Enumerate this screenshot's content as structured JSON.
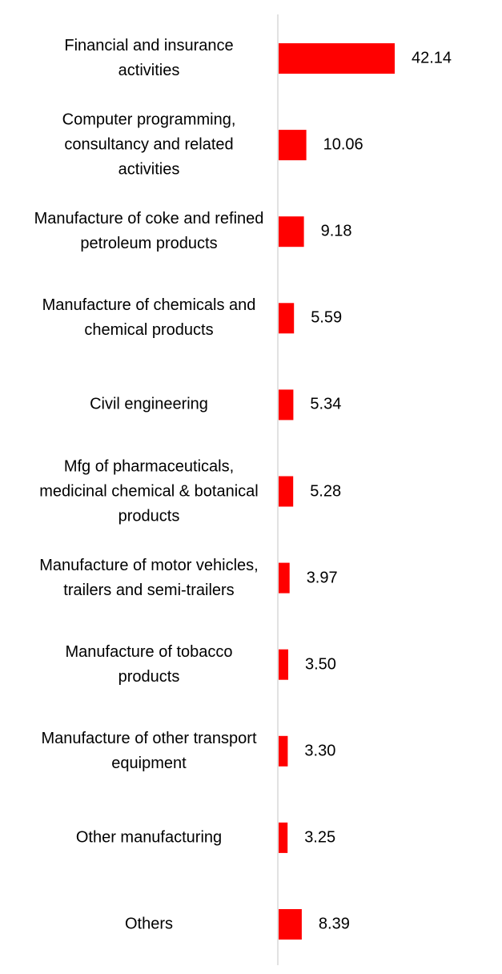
{
  "chart_data": {
    "type": "bar",
    "orientation": "horizontal",
    "title": "",
    "xlabel": "",
    "ylabel": "",
    "categories": [
      "Financial and insurance activities",
      "Computer programming, consultancy and related activities",
      "Manufacture of coke and refined petroleum products",
      "Manufacture of chemicals and chemical products",
      "Civil engineering",
      "Mfg of pharmaceuticals, medicinal chemical & botanical products",
      "Manufacture of motor vehicles, trailers and semi-trailers",
      "Manufacture of tobacco products",
      "Manufacture of other transport equipment",
      "Other manufacturing",
      "Others"
    ],
    "values": [
      42.14,
      10.06,
      9.18,
      5.59,
      5.34,
      5.28,
      3.97,
      3.5,
      3.3,
      3.25,
      8.39
    ],
    "value_labels": [
      "42.14",
      "10.06",
      "9.18",
      "5.59",
      "5.34",
      "5.28",
      "3.97",
      "3.50",
      "3.30",
      "3.25",
      "8.39"
    ],
    "xlim": [
      0,
      45
    ],
    "bar_color": "#ff0000",
    "axis_color": "#d9d9d9",
    "grid": false,
    "legend": "none"
  }
}
